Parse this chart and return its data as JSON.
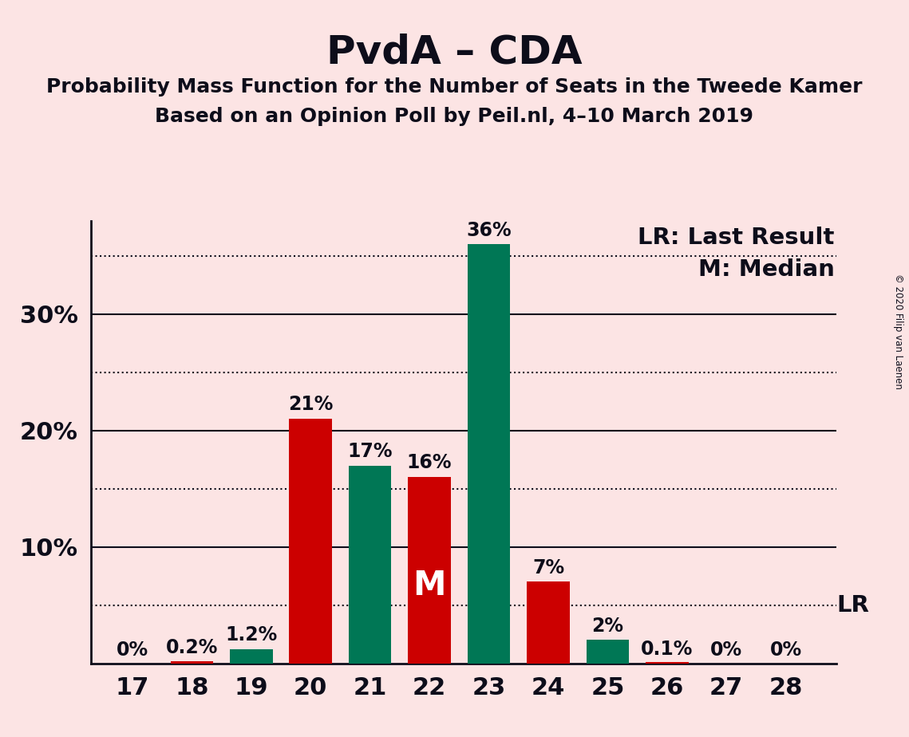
{
  "title": "PvdA – CDA",
  "subtitle1": "Probability Mass Function for the Number of Seats in the Tweede Kamer",
  "subtitle2": "Based on an Opinion Poll by Peil.nl, 4–10 March 2019",
  "copyright": "© 2020 Filip van Laenen",
  "seats": [
    17,
    18,
    19,
    20,
    21,
    22,
    23,
    24,
    25,
    26,
    27,
    28
  ],
  "values": [
    0.0,
    0.2,
    1.2,
    21.0,
    17.0,
    16.0,
    36.0,
    7.0,
    2.0,
    0.1,
    0.0,
    0.0
  ],
  "labels": [
    "0%",
    "0.2%",
    "1.2%",
    "21%",
    "17%",
    "16%",
    "36%",
    "7%",
    "2%",
    "0.1%",
    "0%",
    "0%"
  ],
  "colors": [
    "#cc0000",
    "#cc0000",
    "#007755",
    "#cc0000",
    "#007755",
    "#cc0000",
    "#007755",
    "#cc0000",
    "#007755",
    "#cc0000",
    "#007755",
    "#007755"
  ],
  "lr_value": 5.0,
  "median_seat": 22,
  "background_color": "#fce4e4",
  "bar_width": 0.72,
  "ylim": [
    0,
    38
  ],
  "solid_yticks": [
    10,
    20,
    30
  ],
  "dotted_yticks": [
    5,
    15,
    25,
    35
  ],
  "lr_line_value": 5.0,
  "ytick_positions": [
    10,
    20,
    30
  ],
  "ytick_labels": [
    "10%",
    "20%",
    "30%"
  ],
  "lr_label": "LR",
  "lr_annotation": "LR: Last Result",
  "median_annotation": "M: Median",
  "median_label": "M",
  "title_fontsize": 36,
  "subtitle_fontsize": 18,
  "label_fontsize": 17,
  "tick_fontsize": 22,
  "legend_fontsize": 21,
  "text_color": "#0d0d1a"
}
